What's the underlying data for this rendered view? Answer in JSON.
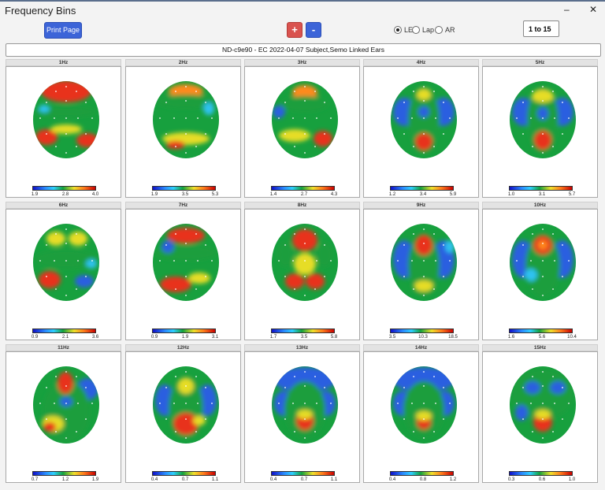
{
  "window": {
    "title": "Frequency Bins",
    "minimize": "–",
    "close": "✕"
  },
  "toolbar": {
    "print_label": "Print Page",
    "zoom_in": "+",
    "zoom_out": "-",
    "montage": [
      {
        "label": "LE",
        "selected": true
      },
      {
        "label": "Lap",
        "selected": false
      },
      {
        "label": "AR",
        "selected": false
      }
    ],
    "range_value": "1 to 15"
  },
  "info_bar": "ND-c9e90  - EC  2022-04-07  Subject,Semo Linked Ears",
  "colors": {
    "accent_blue": "#3c64d8",
    "accent_red": "#d9534f"
  },
  "maps": [
    {
      "label": "1Hz",
      "scale": [
        "1.9",
        "2.8",
        "4.0"
      ]
    },
    {
      "label": "2Hz",
      "scale": [
        "1.9",
        "3.5",
        "5.3"
      ]
    },
    {
      "label": "3Hz",
      "scale": [
        "1.4",
        "2.7",
        "4.3"
      ]
    },
    {
      "label": "4Hz",
      "scale": [
        "1.2",
        "3.4",
        "5.9"
      ]
    },
    {
      "label": "5Hz",
      "scale": [
        "1.0",
        "3.1",
        "5.7"
      ]
    },
    {
      "label": "6Hz",
      "scale": [
        "0.9",
        "2.1",
        "3.6"
      ]
    },
    {
      "label": "7Hz",
      "scale": [
        "0.9",
        "1.9",
        "3.1"
      ]
    },
    {
      "label": "8Hz",
      "scale": [
        "1.7",
        "3.5",
        "5.8"
      ]
    },
    {
      "label": "9Hz",
      "scale": [
        "3.5",
        "10.3",
        "18.5"
      ]
    },
    {
      "label": "10Hz",
      "scale": [
        "1.6",
        "5.6",
        "10.4"
      ]
    },
    {
      "label": "11Hz",
      "scale": [
        "0.7",
        "1.2",
        "1.9"
      ]
    },
    {
      "label": "12Hz",
      "scale": [
        "0.4",
        "0.7",
        "1.1"
      ]
    },
    {
      "label": "13Hz",
      "scale": [
        "0.4",
        "0.7",
        "1.1"
      ]
    },
    {
      "label": "14Hz",
      "scale": [
        "0.4",
        "0.8",
        "1.2"
      ]
    },
    {
      "label": "15Hz",
      "scale": [
        "0.3",
        "0.6",
        "1.0"
      ]
    }
  ]
}
